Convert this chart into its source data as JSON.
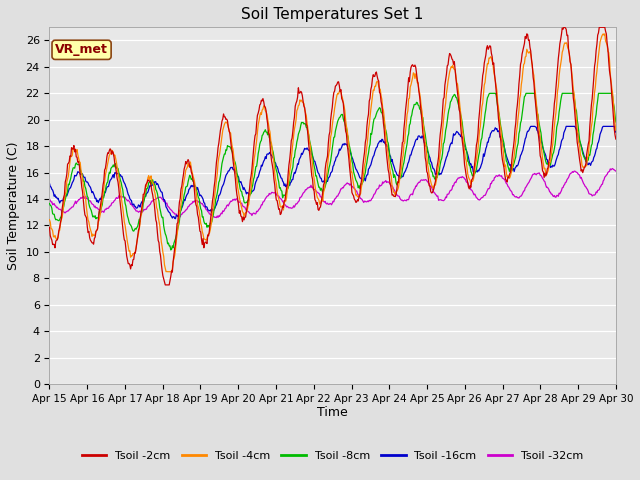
{
  "title": "Soil Temperatures Set 1",
  "xlabel": "Time",
  "ylabel": "Soil Temperature (C)",
  "ylim": [
    0,
    27
  ],
  "yticks": [
    0,
    2,
    4,
    6,
    8,
    10,
    12,
    14,
    16,
    18,
    20,
    22,
    24,
    26
  ],
  "x_labels": [
    "Apr 15",
    "Apr 16",
    "Apr 17",
    "Apr 18",
    "Apr 19",
    "Apr 20",
    "Apr 21",
    "Apr 22",
    "Apr 23",
    "Apr 24",
    "Apr 25",
    "Apr 26",
    "Apr 27",
    "Apr 28",
    "Apr 29",
    "Apr 30"
  ],
  "legend_labels": [
    "Tsoil -2cm",
    "Tsoil -4cm",
    "Tsoil -8cm",
    "Tsoil -16cm",
    "Tsoil -32cm"
  ],
  "colors": [
    "#cc0000",
    "#ff8800",
    "#00bb00",
    "#0000cc",
    "#cc00cc"
  ],
  "annotation_text": "VR_met",
  "background_color": "#e0e0e0",
  "plot_bg_color": "#e8e8e8",
  "n_days": 15,
  "n_points_per_day": 48,
  "figwidth": 6.4,
  "figheight": 4.8,
  "dpi": 100
}
